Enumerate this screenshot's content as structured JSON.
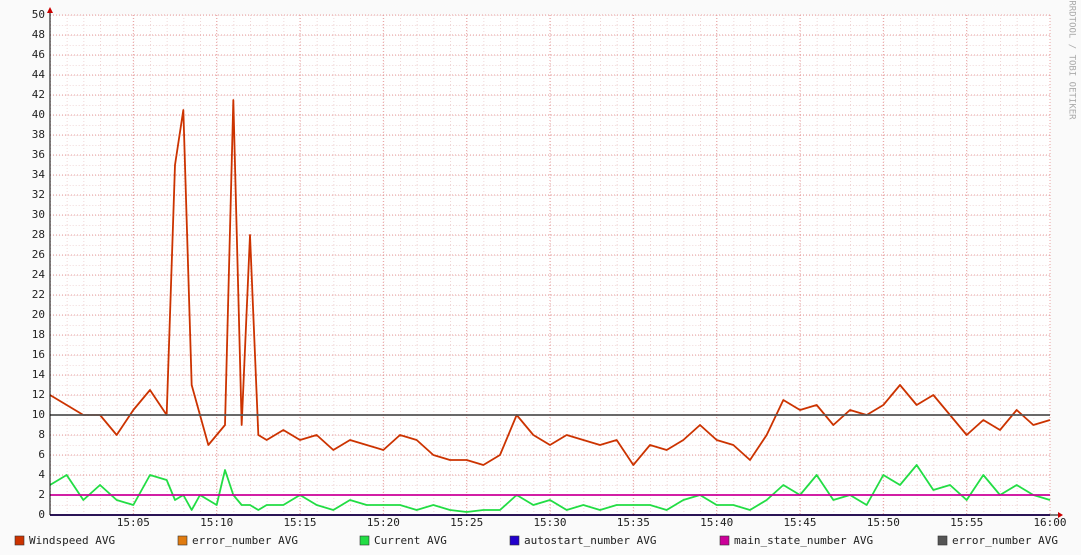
{
  "chart_data": {
    "type": "line",
    "watermark": "RRDTOOL / TOBI OETIKER",
    "x": [
      0,
      1,
      2,
      3,
      4,
      5,
      6,
      7,
      7.5,
      8,
      8.5,
      9,
      9.5,
      10,
      10.5,
      11,
      11.5,
      12,
      12.5,
      13,
      14,
      15,
      16,
      17,
      18,
      19,
      20,
      21,
      22,
      23,
      24,
      25,
      26,
      27,
      28,
      29,
      30,
      31,
      32,
      33,
      34,
      35,
      36,
      37,
      38,
      39,
      40,
      41,
      42,
      43,
      44,
      45,
      46,
      47,
      48,
      49,
      50,
      51,
      52,
      53,
      54,
      55,
      56,
      57,
      58,
      59,
      60
    ],
    "xlim": [
      0,
      60
    ],
    "xticks": [
      {
        "value": 5,
        "label": "15:05"
      },
      {
        "value": 10,
        "label": "15:10"
      },
      {
        "value": 15,
        "label": "15:15"
      },
      {
        "value": 20,
        "label": "15:20"
      },
      {
        "value": 25,
        "label": "15:25"
      },
      {
        "value": 30,
        "label": "15:30"
      },
      {
        "value": 35,
        "label": "15:35"
      },
      {
        "value": 40,
        "label": "15:40"
      },
      {
        "value": 45,
        "label": "15:45"
      },
      {
        "value": 50,
        "label": "15:50"
      },
      {
        "value": 55,
        "label": "15:55"
      },
      {
        "value": 60,
        "label": "16:00"
      }
    ],
    "ylim": [
      0,
      50
    ],
    "yticks": [
      0,
      2,
      4,
      6,
      8,
      10,
      12,
      14,
      16,
      18,
      20,
      22,
      24,
      26,
      28,
      30,
      32,
      34,
      36,
      38,
      40,
      42,
      44,
      46,
      48,
      50
    ],
    "grid": true,
    "series": [
      {
        "name": "Windspeed AVG",
        "color": "#cc3300",
        "values": [
          12,
          11,
          10,
          10,
          8,
          10.5,
          12.5,
          10,
          35,
          40.5,
          13,
          10,
          7,
          8,
          9,
          41.5,
          9,
          28,
          8,
          7.5,
          8.5,
          7.5,
          8,
          6.5,
          7.5,
          7,
          6.5,
          8,
          7.5,
          6,
          5.5,
          5.5,
          5,
          6,
          10,
          8,
          7,
          8,
          7.5,
          7,
          7.5,
          5,
          7,
          6.5,
          7.5,
          9,
          7.5,
          7,
          5.5,
          8,
          11.5,
          10.5,
          11,
          9,
          10.5,
          10,
          11,
          13,
          11,
          12,
          10,
          8,
          9.5,
          8.5,
          10.5,
          9,
          9.5
        ]
      },
      {
        "name": "error_number AVG",
        "color": "#e07b10",
        "values": [
          0,
          0,
          0,
          0,
          0,
          0,
          0,
          0,
          0,
          0,
          0,
          0,
          0,
          0,
          0,
          0,
          0,
          0,
          0,
          0,
          0,
          0,
          0,
          0,
          0,
          0,
          0,
          0,
          0,
          0,
          0,
          0,
          0,
          0,
          0,
          0,
          0,
          0,
          0,
          0,
          0,
          0,
          0,
          0,
          0,
          0,
          0,
          0,
          0,
          0,
          0,
          0,
          0,
          0,
          0,
          0,
          0,
          0,
          0,
          0,
          0,
          0,
          0,
          0,
          0,
          0,
          0
        ]
      },
      {
        "name": "Current AVG",
        "color": "#22dd44",
        "values": [
          3,
          4,
          1.5,
          3,
          1.5,
          1,
          4,
          3.5,
          1.5,
          2,
          0.5,
          2,
          1.5,
          1,
          4.5,
          2,
          1,
          1,
          0.5,
          1,
          1,
          2,
          1,
          0.5,
          1.5,
          1,
          1,
          1,
          0.5,
          1,
          0.5,
          0.3,
          0.5,
          0.5,
          2,
          1,
          1.5,
          0.5,
          1,
          0.5,
          1,
          1,
          1,
          0.5,
          1.5,
          2,
          1,
          1,
          0.5,
          1.5,
          3,
          2,
          4,
          1.5,
          2,
          1,
          4,
          3,
          5,
          2.5,
          3,
          1.5,
          4,
          2,
          3,
          2,
          1.5
        ]
      },
      {
        "name": "autostart_number AVG",
        "color": "#2200cc",
        "values": [
          0,
          0,
          0,
          0,
          0,
          0,
          0,
          0,
          0,
          0,
          0,
          0,
          0,
          0,
          0,
          0,
          0,
          0,
          0,
          0,
          0,
          0,
          0,
          0,
          0,
          0,
          0,
          0,
          0,
          0,
          0,
          0,
          0,
          0,
          0,
          0,
          0,
          0,
          0,
          0,
          0,
          0,
          0,
          0,
          0,
          0,
          0,
          0,
          0,
          0,
          0,
          0,
          0,
          0,
          0,
          0,
          0,
          0,
          0,
          0,
          0,
          0,
          0,
          0,
          0,
          0,
          0
        ]
      },
      {
        "name": "main_state_number AVG",
        "color": "#cc0099",
        "values": [
          2,
          2,
          2,
          2,
          2,
          2,
          2,
          2,
          2,
          2,
          2,
          2,
          2,
          2,
          2,
          2,
          2,
          2,
          2,
          2,
          2,
          2,
          2,
          2,
          2,
          2,
          2,
          2,
          2,
          2,
          2,
          2,
          2,
          2,
          2,
          2,
          2,
          2,
          2,
          2,
          2,
          2,
          2,
          2,
          2,
          2,
          2,
          2,
          2,
          2,
          2,
          2,
          2,
          2,
          2,
          2,
          2,
          2,
          2,
          2,
          2,
          2,
          2,
          2,
          2,
          2,
          2
        ]
      },
      {
        "name": "error_number AVG",
        "color": "#555555",
        "values": [
          10,
          10,
          10,
          10,
          10,
          10,
          10,
          10,
          10,
          10,
          10,
          10,
          10,
          10,
          10,
          10,
          10,
          10,
          10,
          10,
          10,
          10,
          10,
          10,
          10,
          10,
          10,
          10,
          10,
          10,
          10,
          10,
          10,
          10,
          10,
          10,
          10,
          10,
          10,
          10,
          10,
          10,
          10,
          10,
          10,
          10,
          10,
          10,
          10,
          10,
          10,
          10,
          10,
          10,
          10,
          10,
          10,
          10,
          10,
          10,
          10,
          10,
          10,
          10,
          10,
          10,
          10
        ]
      }
    ]
  }
}
